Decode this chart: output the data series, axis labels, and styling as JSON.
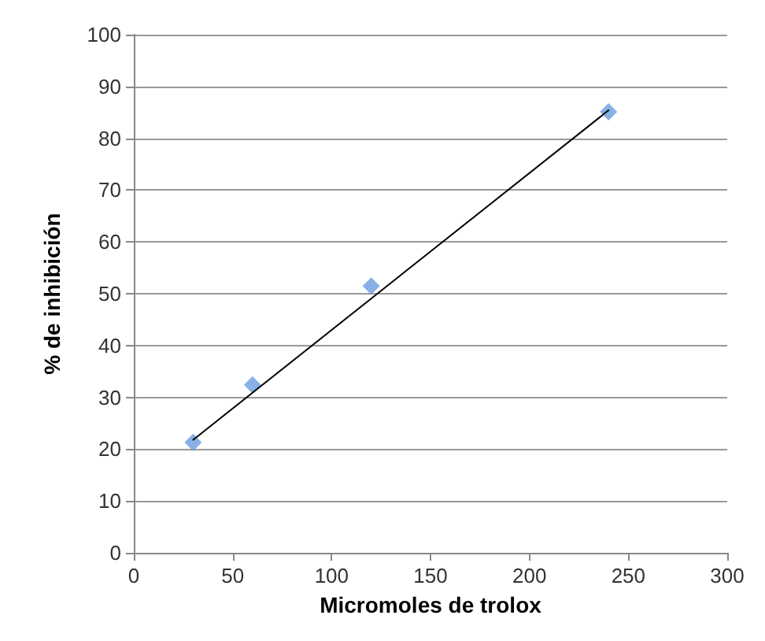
{
  "chart_data": {
    "type": "scatter",
    "xlabel": "Micromoles de trolox",
    "ylabel": "% de inhibición",
    "xlim": [
      0,
      300
    ],
    "xticks": [
      0,
      50,
      100,
      150,
      200,
      250,
      300
    ],
    "ylim": [
      0,
      100
    ],
    "yticks": [
      0,
      10,
      20,
      30,
      40,
      50,
      60,
      70,
      80,
      90,
      100
    ],
    "grid": "y",
    "series": [
      {
        "type": "scatter",
        "color": "#6a9be0",
        "marker": "diamond",
        "x": [
          30,
          60,
          120,
          240
        ],
        "values": [
          21.3,
          32.4,
          51.5,
          85.1
        ]
      },
      {
        "type": "line",
        "color": "#000000",
        "marker": "none",
        "line_style": "solid",
        "x": [
          30,
          240
        ],
        "values": [
          21.8,
          85.4
        ]
      }
    ]
  }
}
